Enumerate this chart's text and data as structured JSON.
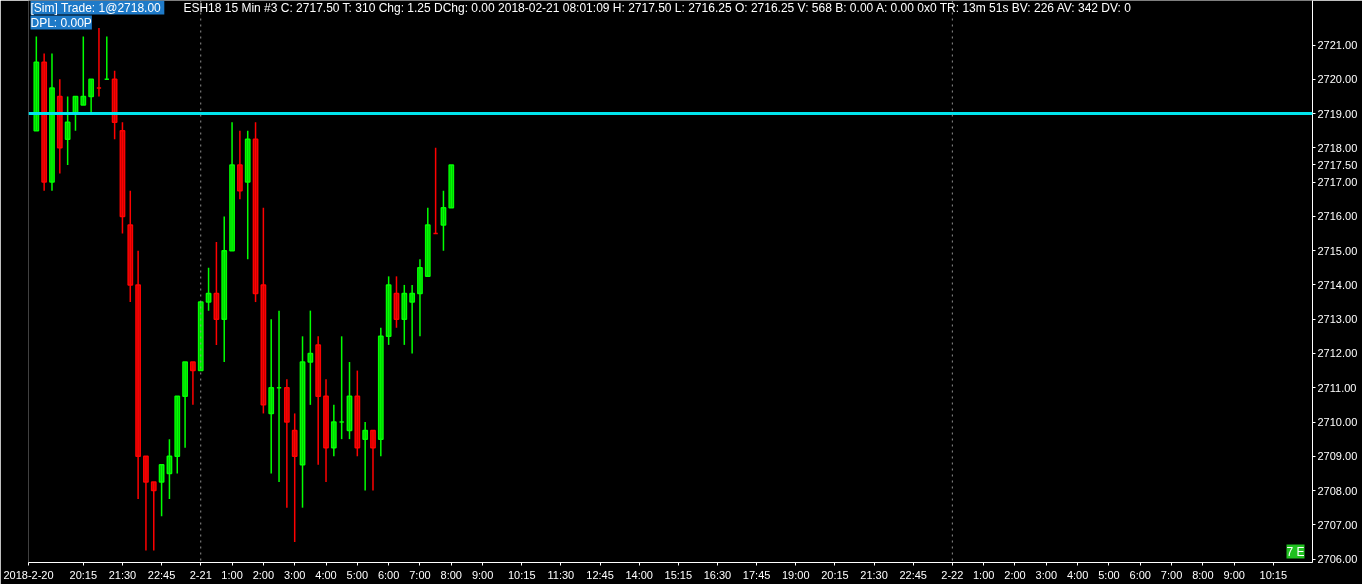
{
  "chart_data": {
    "type": "candlestick",
    "annotations": [
      "[Sim]  Trade: 1@2718.00",
      "ESH18  15 Min   #3 C: 2717.50 T: 310 Chg: 1.25 DChg: 0.00 2018-02-21 08:01:09 H: 2717.50 L: 2716.25 O: 2716.25 V: 568 B: 0.00 A: 0.00 0x0 TR: 13m 51s BV: 226 AV: 342 DV: 0",
      "DPL: 0.00P",
      "7 E"
    ],
    "x": [
      "2018-02-20T18:45",
      "2018-02-20T19:00",
      "2018-02-20T19:15",
      "2018-02-20T19:30",
      "2018-02-20T19:45",
      "2018-02-20T20:00",
      "2018-02-20T20:15",
      "2018-02-20T20:30",
      "2018-02-20T20:45",
      "2018-02-20T21:00",
      "2018-02-20T21:15",
      "2018-02-20T21:30",
      "2018-02-20T21:45",
      "2018-02-20T22:00",
      "2018-02-20T22:15",
      "2018-02-20T22:30",
      "2018-02-20T22:45",
      "2018-02-20T23:00",
      "2018-02-20T23:15",
      "2018-02-20T23:30",
      "2018-02-20T23:45",
      "2018-02-21T00:00",
      "2018-02-21T00:15",
      "2018-02-21T00:30",
      "2018-02-21T00:45",
      "2018-02-21T01:00",
      "2018-02-21T01:15",
      "2018-02-21T01:30",
      "2018-02-21T01:45",
      "2018-02-21T02:00",
      "2018-02-21T02:15",
      "2018-02-21T02:30",
      "2018-02-21T02:45",
      "2018-02-21T03:00",
      "2018-02-21T03:15",
      "2018-02-21T03:30",
      "2018-02-21T03:45",
      "2018-02-21T04:00",
      "2018-02-21T04:15",
      "2018-02-21T04:30",
      "2018-02-21T04:45",
      "2018-02-21T05:00",
      "2018-02-21T05:15",
      "2018-02-21T05:30",
      "2018-02-21T05:45",
      "2018-02-21T06:00",
      "2018-02-21T06:15",
      "2018-02-21T06:30",
      "2018-02-21T06:45",
      "2018-02-21T07:00",
      "2018-02-21T07:15",
      "2018-02-21T07:30",
      "2018-02-21T07:45",
      "2018-02-21T08:00"
    ],
    "ohlc": [
      [
        2718.5,
        2721.25,
        2718.5,
        2720.5
      ],
      [
        2720.5,
        2720.75,
        2716.75,
        2717.0
      ],
      [
        2717.0,
        2720.75,
        2716.75,
        2719.75
      ],
      [
        2719.5,
        2720.0,
        2717.25,
        2718.0
      ],
      [
        2718.25,
        2719.5,
        2717.5,
        2718.75
      ],
      [
        2719.0,
        2719.5,
        2718.5,
        2719.5
      ],
      [
        2719.25,
        2721.25,
        2719.25,
        2719.5
      ],
      [
        2719.5,
        2720.0,
        2719.0,
        2720.0
      ],
      [
        2719.75,
        2721.5,
        2719.5,
        2719.75
      ],
      [
        2720.0,
        2721.25,
        2720.0,
        2720.0
      ],
      [
        2720.0,
        2720.25,
        2718.25,
        2718.75
      ],
      [
        2718.5,
        2718.75,
        2715.5,
        2716.0
      ],
      [
        2715.75,
        2716.75,
        2713.5,
        2714.0
      ],
      [
        2714.0,
        2715.0,
        2707.75,
        2709.0
      ],
      [
        2709.0,
        2709.0,
        2706.25,
        2708.25
      ],
      [
        2708.25,
        2708.25,
        2706.25,
        2708.0
      ],
      [
        2708.25,
        2708.75,
        2707.25,
        2708.75
      ],
      [
        2708.5,
        2709.5,
        2707.75,
        2709.0
      ],
      [
        2709.0,
        2710.75,
        2708.5,
        2710.75
      ],
      [
        2710.75,
        2711.75,
        2709.25,
        2711.75
      ],
      [
        2711.75,
        2711.75,
        2710.5,
        2711.5
      ],
      [
        2711.5,
        2713.5,
        2711.5,
        2713.5
      ],
      [
        2713.5,
        2714.5,
        2713.25,
        2713.75
      ],
      [
        2713.75,
        2715.25,
        2712.25,
        2713.0
      ],
      [
        2713.0,
        2716.0,
        2711.75,
        2715.0
      ],
      [
        2715.0,
        2718.75,
        2715.0,
        2717.5
      ],
      [
        2717.5,
        2718.5,
        2716.5,
        2716.75
      ],
      [
        2717.0,
        2718.5,
        2714.75,
        2718.25
      ],
      [
        2718.25,
        2718.75,
        2713.5,
        2713.75
      ],
      [
        2714.0,
        2716.25,
        2710.25,
        2710.5
      ],
      [
        2710.25,
        2713.0,
        2708.5,
        2711.0
      ],
      [
        2711.0,
        2713.25,
        2708.25,
        2711.0
      ],
      [
        2711.0,
        2711.25,
        2707.5,
        2710.0
      ],
      [
        2709.75,
        2710.25,
        2706.5,
        2709.0
      ],
      [
        2708.75,
        2712.5,
        2707.5,
        2711.75
      ],
      [
        2711.75,
        2713.25,
        2710.5,
        2712.0
      ],
      [
        2712.25,
        2712.5,
        2708.75,
        2710.75
      ],
      [
        2710.75,
        2711.25,
        2708.25,
        2709.25
      ],
      [
        2709.25,
        2710.5,
        2709.0,
        2710.0
      ],
      [
        2710.0,
        2712.5,
        2709.5,
        2710.0
      ],
      [
        2709.75,
        2711.75,
        2709.5,
        2710.75
      ],
      [
        2710.75,
        2711.5,
        2709.0,
        2709.25
      ],
      [
        2709.5,
        2710.0,
        2708.0,
        2709.75
      ],
      [
        2709.75,
        2709.75,
        2708.0,
        2709.25
      ],
      [
        2709.5,
        2712.75,
        2709.0,
        2712.5
      ],
      [
        2712.5,
        2714.25,
        2712.25,
        2714.0
      ],
      [
        2713.75,
        2714.25,
        2712.75,
        2713.0
      ],
      [
        2713.0,
        2714.0,
        2712.25,
        2713.75
      ],
      [
        2713.5,
        2714.0,
        2712.0,
        2713.75
      ],
      [
        2713.75,
        2714.75,
        2712.5,
        2714.5
      ],
      [
        2714.25,
        2716.25,
        2714.25,
        2715.75
      ],
      [
        2715.5,
        2718.0,
        2715.5,
        2715.5
      ],
      [
        2715.75,
        2716.75,
        2715.0,
        2716.25
      ],
      [
        2716.25,
        2717.5,
        2716.25,
        2717.5
      ]
    ],
    "colors": [
      "#00ff00",
      "#ff0000",
      "#00ff00",
      "#ff0000",
      "#00ff00",
      "#00ff00",
      "#00ff00",
      "#00ff00",
      "#ff0000",
      "#00ff00",
      "#ff0000",
      "#ff0000",
      "#ff0000",
      "#ff0000",
      "#ff0000",
      "#ff0000",
      "#00ff00",
      "#00ff00",
      "#00ff00",
      "#00ff00",
      "#ff0000",
      "#00ff00",
      "#00ff00",
      "#ff0000",
      "#00ff00",
      "#00ff00",
      "#ff0000",
      "#00ff00",
      "#ff0000",
      "#ff0000",
      "#00ff00",
      "#00ff00",
      "#ff0000",
      "#ff0000",
      "#00ff00",
      "#00ff00",
      "#ff0000",
      "#ff0000",
      "#00ff00",
      "#00ff00",
      "#00ff00",
      "#ff0000",
      "#00ff00",
      "#ff0000",
      "#00ff00",
      "#00ff00",
      "#ff0000",
      "#00ff00",
      "#00ff00",
      "#00ff00",
      "#00ff00",
      "#ff0000",
      "#00ff00",
      "#00ff00"
    ],
    "xlim": [
      "2018-02-20T18:30",
      "2018-02-22T11:30"
    ],
    "xticks": [
      {
        "value": "2018-02-20T18:30",
        "label": "2018-2-20"
      },
      {
        "value": "2018-02-20T20:15",
        "label": "20:15"
      },
      {
        "value": "2018-02-20T21:30",
        "label": "21:30"
      },
      {
        "value": "2018-02-20T22:45",
        "label": "22:45"
      },
      {
        "value": "2018-02-21T00:00",
        "label": "2-21"
      },
      {
        "value": "2018-02-21T01:00",
        "label": "1:00"
      },
      {
        "value": "2018-02-21T02:00",
        "label": "2:00"
      },
      {
        "value": "2018-02-21T03:00",
        "label": "3:00"
      },
      {
        "value": "2018-02-21T04:00",
        "label": "4:00"
      },
      {
        "value": "2018-02-21T05:00",
        "label": "5:00"
      },
      {
        "value": "2018-02-21T06:00",
        "label": "6:00"
      },
      {
        "value": "2018-02-21T07:00",
        "label": "7:00"
      },
      {
        "value": "2018-02-21T08:00",
        "label": "8:00"
      },
      {
        "value": "2018-02-21T09:00",
        "label": "9:00"
      },
      {
        "value": "2018-02-21T10:15",
        "label": "10:15"
      },
      {
        "value": "2018-02-21T11:30",
        "label": "11:30"
      },
      {
        "value": "2018-02-21T12:45",
        "label": "12:45"
      },
      {
        "value": "2018-02-21T14:00",
        "label": "14:00"
      },
      {
        "value": "2018-02-21T15:15",
        "label": "15:15"
      },
      {
        "value": "2018-02-21T16:30",
        "label": "16:30"
      },
      {
        "value": "2018-02-21T17:45",
        "label": "17:45"
      },
      {
        "value": "2018-02-21T19:00",
        "label": "19:00"
      },
      {
        "value": "2018-02-21T20:15",
        "label": "20:15"
      },
      {
        "value": "2018-02-21T21:30",
        "label": "21:30"
      },
      {
        "value": "2018-02-21T22:45",
        "label": "22:45"
      },
      {
        "value": "2018-02-22T00:00",
        "label": "2-22"
      },
      {
        "value": "2018-02-22T01:00",
        "label": "1:00"
      },
      {
        "value": "2018-02-22T02:00",
        "label": "2:00"
      },
      {
        "value": "2018-02-22T03:00",
        "label": "3:00"
      },
      {
        "value": "2018-02-22T04:00",
        "label": "4:00"
      },
      {
        "value": "2018-02-22T05:00",
        "label": "5:00"
      },
      {
        "value": "2018-02-22T06:00",
        "label": "6:00"
      },
      {
        "value": "2018-02-22T07:00",
        "label": "7:00"
      },
      {
        "value": "2018-02-22T08:00",
        "label": "8:00"
      },
      {
        "value": "2018-02-22T09:00",
        "label": "9:00"
      },
      {
        "value": "2018-02-22T10:15",
        "label": "10:15"
      }
    ],
    "ylim": [
      2705.9,
      2722.3
    ],
    "yticks": [
      {
        "value": 2706,
        "label": "2706.00"
      },
      {
        "value": 2707,
        "label": "2707.00"
      },
      {
        "value": 2708,
        "label": "2708.00"
      },
      {
        "value": 2709,
        "label": "2709.00"
      },
      {
        "value": 2710,
        "label": "2710.00"
      },
      {
        "value": 2711,
        "label": "2711.00"
      },
      {
        "value": 2712,
        "label": "2712.00"
      },
      {
        "value": 2713,
        "label": "2713.00"
      },
      {
        "value": 2714,
        "label": "2714.00"
      },
      {
        "value": 2715,
        "label": "2715.00"
      },
      {
        "value": 2716,
        "label": "2716.00"
      },
      {
        "value": 2717,
        "label": "2717.00"
      },
      {
        "value": 2717.5,
        "label": "2717.50"
      },
      {
        "value": 2718,
        "label": "2718.00"
      },
      {
        "value": 2719,
        "label": "2719.00"
      },
      {
        "value": 2720,
        "label": "2720.00"
      },
      {
        "value": 2721,
        "label": "2721.00"
      }
    ],
    "ref_lines": [
      {
        "axis": "y",
        "value": 2719,
        "color": "#00e5ee",
        "line_style": "solid"
      },
      {
        "axis": "x",
        "value": "2018-02-21T00:00",
        "color": "#909090",
        "line_style": "dotted"
      },
      {
        "axis": "x",
        "value": "2018-02-22T00:00",
        "color": "#909090",
        "line_style": "dotted"
      }
    ]
  }
}
